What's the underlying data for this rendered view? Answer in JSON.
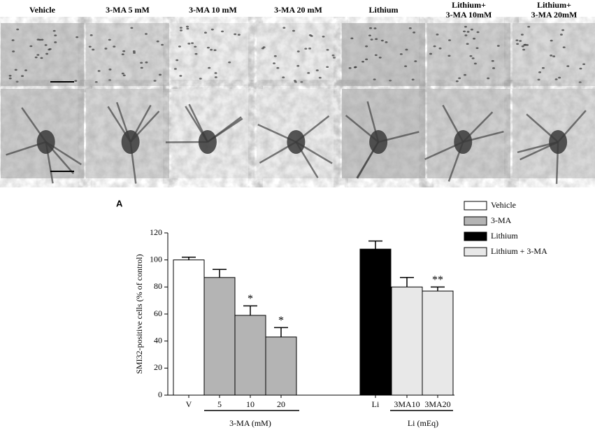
{
  "figure": {
    "columns": [
      [
        "Vehicle"
      ],
      [
        "3-MA 5 mM"
      ],
      [
        "3-MA 10 mM"
      ],
      [
        "3-MA 20 mM"
      ],
      [
        "Lithium"
      ],
      [
        "Lithium+",
        "3-MA 10mM"
      ],
      [
        "Lithium+",
        "3-MA 20mM"
      ]
    ]
  },
  "chart_data": {
    "type": "bar",
    "panel_label": "A",
    "y_label": "SMI32-positive cells (% of control)",
    "categories": [
      "V",
      "5",
      "10",
      "20",
      "Li",
      "3MA10",
      "3MA20"
    ],
    "series": [
      {
        "name": "Vehicle",
        "color": "#ffffff",
        "values": [
          100,
          null,
          null,
          null,
          null,
          null,
          null
        ],
        "errors": [
          2,
          null,
          null,
          null,
          null,
          null,
          null
        ]
      },
      {
        "name": "3-MA",
        "color": "#b4b4b4",
        "values": [
          null,
          87,
          59,
          43,
          null,
          null,
          null
        ],
        "errors": [
          null,
          6,
          7,
          7,
          null,
          null,
          null
        ],
        "significance": [
          null,
          null,
          "*",
          "*",
          null,
          null,
          null
        ]
      },
      {
        "name": "Lithium",
        "color": "#000000",
        "values": [
          null,
          null,
          null,
          null,
          108,
          null,
          null
        ],
        "errors": [
          null,
          null,
          null,
          null,
          6,
          null,
          null
        ]
      },
      {
        "name": "Lithium + 3-MA",
        "color": "#e8e8e8",
        "values": [
          null,
          null,
          null,
          null,
          null,
          80,
          77
        ],
        "errors": [
          null,
          null,
          null,
          null,
          null,
          7,
          3
        ],
        "significance": [
          null,
          null,
          null,
          null,
          null,
          null,
          "**"
        ]
      }
    ],
    "groups": [
      {
        "label": "3-MA (mM)"
      },
      {
        "label": "Li (mEq)"
      }
    ],
    "ylim": [
      0,
      120
    ],
    "yticks": [
      0,
      20,
      40,
      60,
      80,
      100,
      120
    ],
    "grid": false,
    "legend": "upper right"
  }
}
